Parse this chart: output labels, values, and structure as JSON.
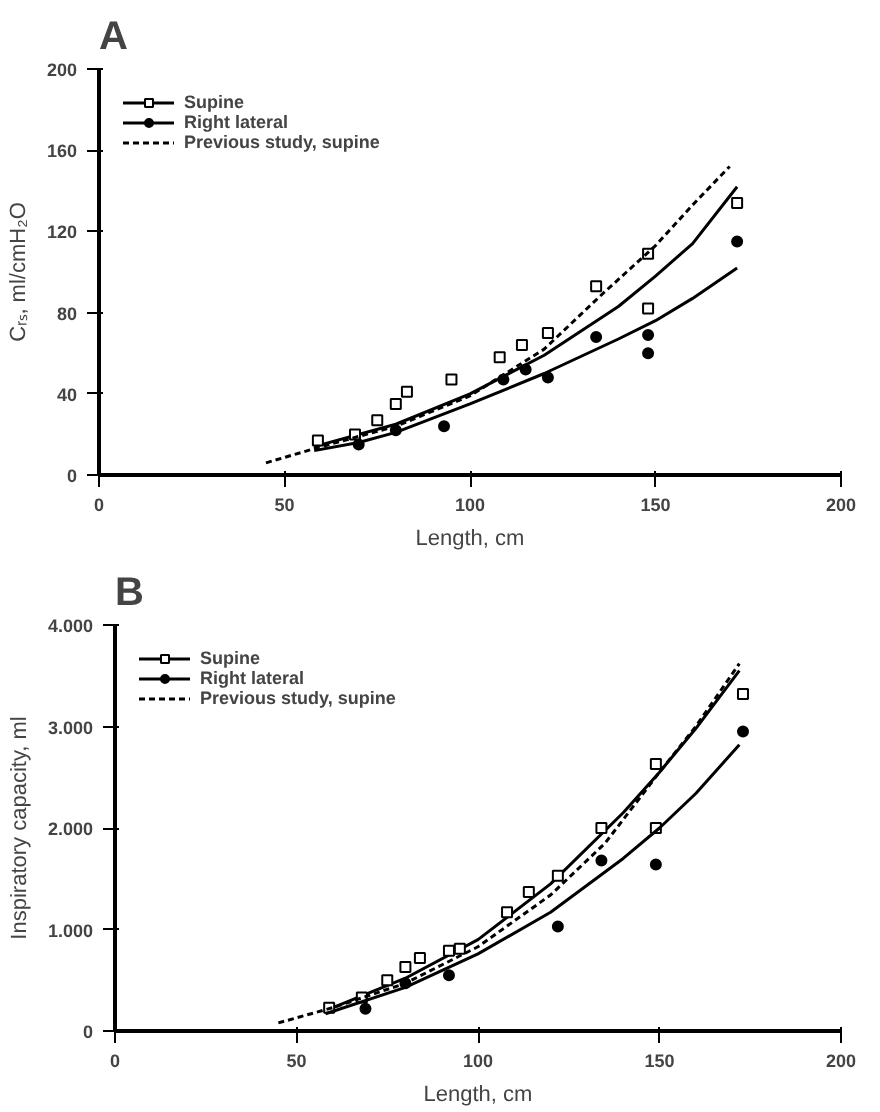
{
  "chart_data": [
    {
      "type": "scatter",
      "title": "A",
      "xlabel": "Length, cm",
      "ylabel": "Cᵣₛ, ml/cmH₂O",
      "xlim": [
        0,
        200
      ],
      "ylim": [
        0,
        200
      ],
      "xticks": [
        0,
        50,
        100,
        150,
        200
      ],
      "yticks": [
        0,
        40,
        80,
        120,
        160,
        200
      ],
      "grid": false,
      "legend": "top left",
      "series": [
        {
          "type": "line",
          "color": "#000000",
          "line_style": "solid",
          "x": [
            58,
            80,
            100,
            120,
            140,
            150,
            160,
            172
          ],
          "values": [
            14,
            25,
            40,
            59,
            83,
            98,
            114,
            142
          ]
        },
        {
          "name": "Supine",
          "marker": "square",
          "color": "#000000",
          "x": [
            59,
            69,
            75,
            80,
            83,
            95,
            108,
            114,
            121,
            134,
            148,
            148,
            172
          ],
          "values": [
            17,
            20,
            27,
            35,
            41,
            47,
            58,
            64,
            70,
            93,
            109,
            82,
            134
          ]
        },
        {
          "type": "line",
          "color": "#000000",
          "line_style": "solid",
          "x": [
            58,
            70,
            80,
            100,
            120,
            140,
            150,
            160,
            172
          ],
          "values": [
            12,
            16,
            21,
            35,
            50,
            67,
            76,
            87,
            102
          ]
        },
        {
          "name": "Right lateral",
          "marker": "circle",
          "color": "#000000",
          "x": [
            70,
            80,
            93,
            109,
            115,
            121,
            134,
            148,
            148,
            172
          ],
          "values": [
            15,
            22,
            24,
            47,
            52,
            48,
            68,
            69,
            60,
            115
          ]
        },
        {
          "name": "Previous study, supine",
          "type": "line",
          "color": "#000000",
          "line_style": "dotted",
          "x": [
            45,
            60,
            80,
            100,
            120,
            135,
            150,
            160,
            170
          ],
          "values": [
            6,
            14,
            24,
            39,
            62,
            88,
            113,
            133,
            152
          ]
        }
      ]
    },
    {
      "type": "scatter",
      "title": "B",
      "xlabel": "Length, cm",
      "ylabel": "Inspiratory capacity, ml",
      "xlim": [
        0,
        200
      ],
      "ylim": [
        0,
        4000
      ],
      "xticks": [
        0,
        50,
        100,
        150,
        200
      ],
      "yticks": [
        0,
        {
          "value": 1000,
          "label": "1.000"
        },
        {
          "value": 2000,
          "label": "2.000"
        },
        {
          "value": 3000,
          "label": "3.000"
        },
        {
          "value": 4000,
          "label": "4.000"
        }
      ],
      "grid": false,
      "legend": "top left",
      "series": [
        {
          "type": "line",
          "color": "#000000",
          "line_style": "solid",
          "x": [
            58,
            80,
            100,
            120,
            140,
            150,
            160,
            172
          ],
          "values": [
            200,
            520,
            900,
            1450,
            2150,
            2550,
            2980,
            3550
          ]
        },
        {
          "name": "Supine",
          "marker": "square",
          "color": "#000000",
          "x": [
            59,
            68,
            75,
            80,
            84,
            92,
            95,
            108,
            114,
            122,
            134,
            149,
            149,
            173
          ],
          "values": [
            230,
            330,
            500,
            630,
            720,
            790,
            810,
            1170,
            1370,
            1530,
            2000,
            2630,
            2000,
            3320
          ]
        },
        {
          "type": "line",
          "color": "#000000",
          "line_style": "solid",
          "x": [
            58,
            80,
            100,
            120,
            140,
            150,
            160,
            172
          ],
          "values": [
            170,
            430,
            760,
            1170,
            1700,
            2000,
            2340,
            2820
          ]
        },
        {
          "name": "Right lateral",
          "marker": "circle",
          "color": "#000000",
          "x": [
            69,
            80,
            92,
            122,
            134,
            149,
            173
          ],
          "values": [
            220,
            470,
            550,
            1030,
            1680,
            1640,
            2950
          ]
        },
        {
          "name": "Previous study, supine",
          "type": "line",
          "color": "#000000",
          "line_style": "dotted",
          "x": [
            45,
            60,
            80,
            100,
            120,
            135,
            150,
            160,
            172
          ],
          "values": [
            80,
            230,
            470,
            830,
            1340,
            1850,
            2550,
            3000,
            3620
          ]
        }
      ]
    }
  ]
}
